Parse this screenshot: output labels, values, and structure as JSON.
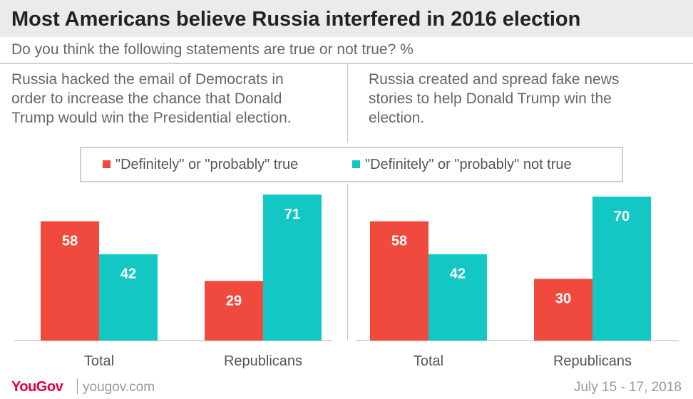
{
  "title": "Most Americans believe Russia interfered  in 2016 election",
  "subtitle": "Do you think the following statements are true or not true? %",
  "colors": {
    "true": "#f0493d",
    "not_true": "#13c7c4"
  },
  "legend": [
    {
      "label": "\"Definitely\" or \"probably\" true",
      "color": "#f0493d"
    },
    {
      "label": "\"Definitely\" or \"probably\" not true",
      "color": "#13c7c4"
    }
  ],
  "footer": {
    "brand": "YouGov",
    "url": "yougov.com",
    "date": "July 15 - 17, 2018"
  },
  "chart_data": [
    {
      "type": "bar",
      "title": "Russia hacked the email of Democrats in\norder to increase the chance that Donald\nTrump would win the Presidential election.",
      "categories": [
        "Total",
        "Republicans"
      ],
      "series": [
        {
          "name": "\"Definitely\" or \"probably\" true",
          "values": [
            58,
            29
          ]
        },
        {
          "name": "\"Definitely\" or \"probably\" not true",
          "values": [
            42,
            71
          ]
        }
      ],
      "ylim": [
        0,
        71
      ],
      "grid": false,
      "legend_position": "top"
    },
    {
      "type": "bar",
      "title": "Russia created and spread fake news\nstories to help Donald Trump win the\nelection.",
      "categories": [
        "Total",
        "Republicans"
      ],
      "series": [
        {
          "name": "\"Definitely\" or \"probably\" true",
          "values": [
            58,
            30
          ]
        },
        {
          "name": "\"Definitely\" or \"probably\" not true",
          "values": [
            42,
            70
          ]
        }
      ],
      "ylim": [
        0,
        71
      ],
      "grid": false,
      "legend_position": "top"
    }
  ]
}
